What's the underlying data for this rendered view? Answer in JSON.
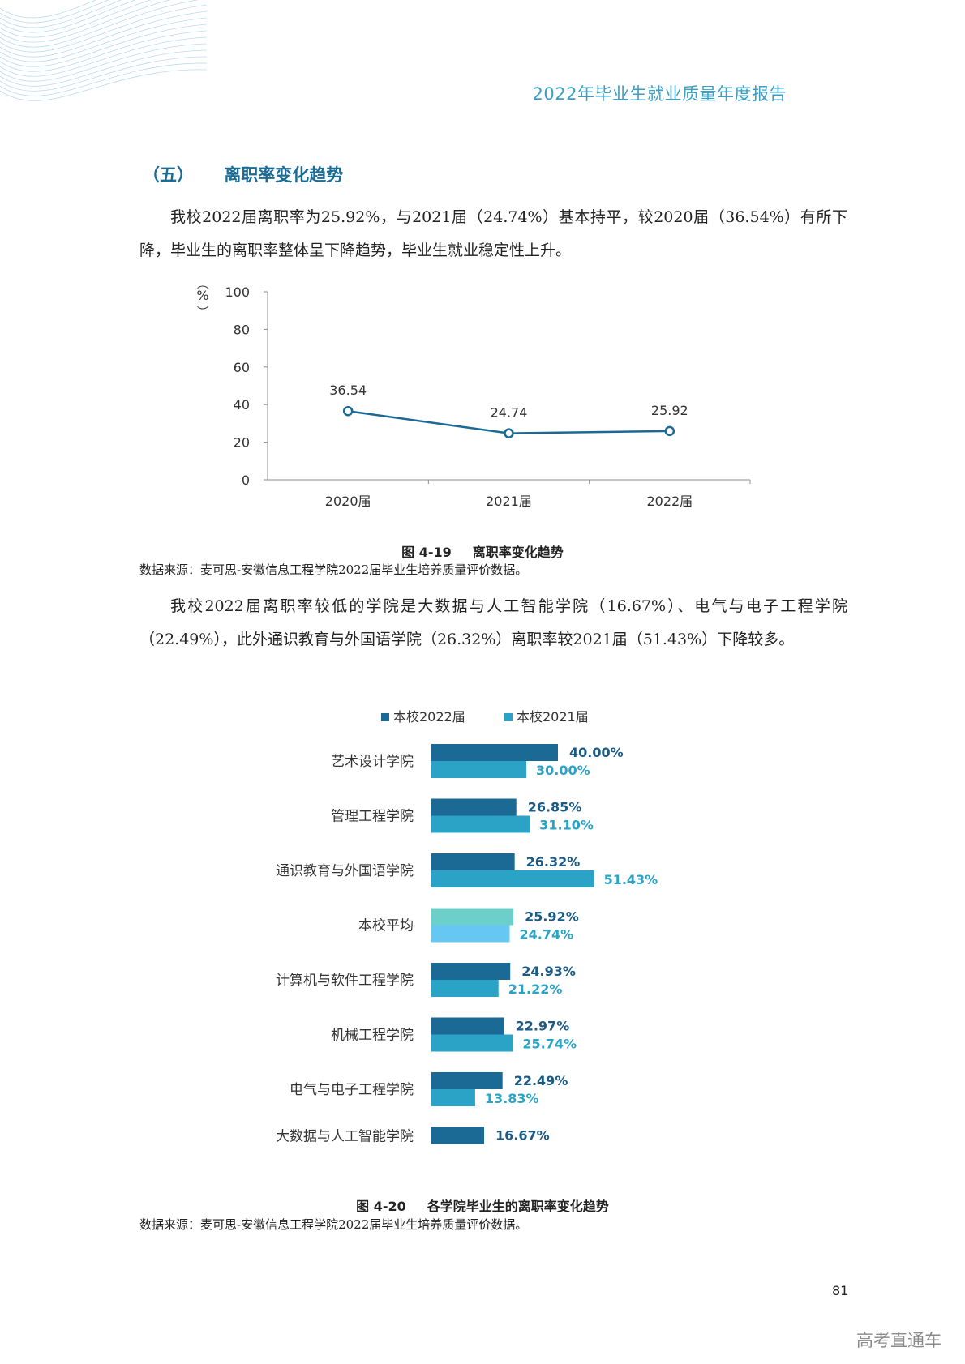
{
  "header": {
    "title": "2022年毕业生就业质量年度报告"
  },
  "section": {
    "number": "（五）",
    "title": "离职率变化趋势"
  },
  "paragraphs": {
    "p1": "我校2022届离职率为25.92%，与2021届（24.74%）基本持平，较2020届（36.54%）有所下降，毕业生的离职率整体呈下降趋势，毕业生就业稳定性上升。",
    "p2": "我校2022届离职率较低的学院是大数据与人工智能学院（16.67%）、电气与电子工程学院（22.49%），此外通识教育与外国语学院（26.32%）离职率较2021届（51.43%）下降较多。"
  },
  "figure1": {
    "fig_no": "图 4-19",
    "title": "离职率变化趋势",
    "source": "数据来源：麦可思-安徽信息工程学院2022届毕业生培养质量评价数据。"
  },
  "figure2": {
    "fig_no": "图 4-20",
    "title": "各学院毕业生的离职率变化趋势",
    "source": "数据来源：麦可思-安徽信息工程学院2022届毕业生培养质量评价数据。"
  },
  "chart_data": [
    {
      "type": "line",
      "title": "离职率变化趋势",
      "ylabel": "%",
      "ylim": [
        0,
        100
      ],
      "yticks": [
        "100",
        "80",
        "60",
        "40",
        "20",
        "0"
      ],
      "categories": [
        "2020届",
        "2021届",
        "2022届"
      ],
      "values": [
        36.54,
        24.74,
        25.92
      ],
      "value_labels": [
        "36.54",
        "24.74",
        "25.92"
      ],
      "line_color": "#1a6a95"
    },
    {
      "type": "bar",
      "orientation": "horizontal",
      "title": "各学院毕业生的离职率变化趋势",
      "legend_placement": "top",
      "legend": [
        {
          "name": "本校2022届",
          "color": "#1a6a95"
        },
        {
          "name": "本校2021届",
          "color": "#2aa3c7"
        }
      ],
      "rows": [
        {
          "label": "艺术设计学院",
          "v2022": 40.0,
          "l2022": "40.00%",
          "v2021": 30.0,
          "l2021": "30.00%"
        },
        {
          "label": "管理工程学院",
          "v2022": 26.85,
          "l2022": "26.85%",
          "v2021": 31.1,
          "l2021": "31.10%"
        },
        {
          "label": "通识教育与外国语学院",
          "v2022": 26.32,
          "l2022": "26.32%",
          "v2021": 51.43,
          "l2021": "51.43%"
        },
        {
          "label": "本校平均",
          "v2022": 25.92,
          "l2022": "25.92%",
          "v2021": 24.74,
          "l2021": "24.74%",
          "highlight": true
        },
        {
          "label": "计算机与软件工程学院",
          "v2022": 24.93,
          "l2022": "24.93%",
          "v2021": 21.22,
          "l2021": "21.22%"
        },
        {
          "label": "机械工程学院",
          "v2022": 22.97,
          "l2022": "22.97%",
          "v2021": 25.74,
          "l2021": "25.74%"
        },
        {
          "label": "电气与电子工程学院",
          "v2022": 22.49,
          "l2022": "22.49%",
          "v2021": 13.83,
          "l2021": "13.83%"
        },
        {
          "label": "大数据与人工智能学院",
          "v2022": 16.67,
          "l2022": "16.67%",
          "v2021": null,
          "l2021": null
        }
      ],
      "colors": {
        "c2022": "#1a6a95",
        "c2021": "#2aa3c7",
        "avg2022": "#6ccfca",
        "avg2021": "#66c8f2"
      }
    }
  ],
  "page": {
    "number": "81"
  },
  "watermark": "高考直通车"
}
